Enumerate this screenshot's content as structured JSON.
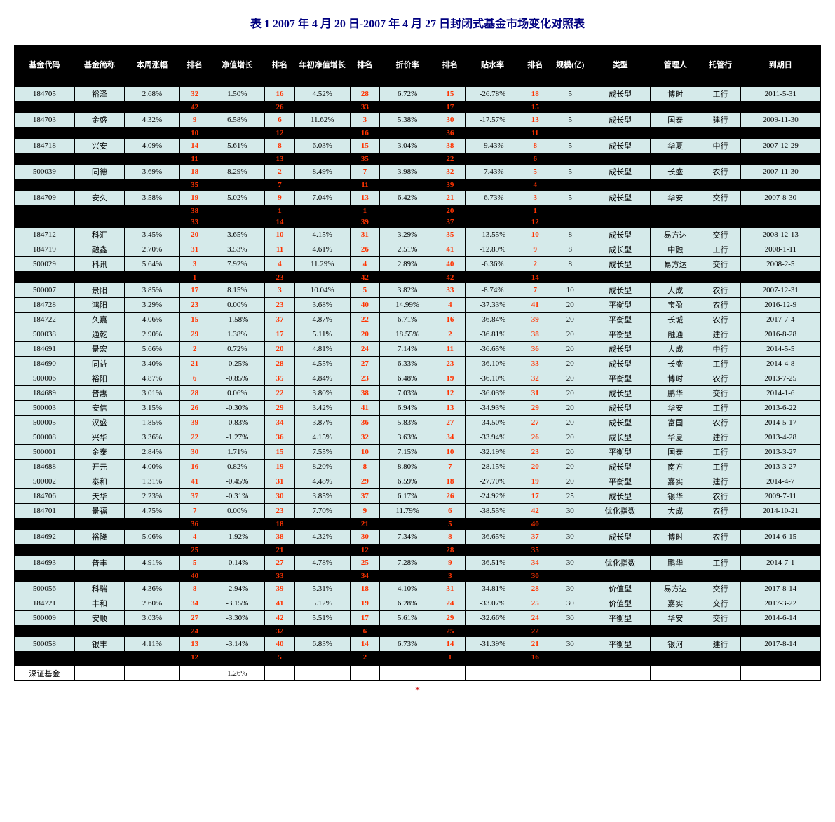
{
  "title": "表 1 2007 年 4 月 20 日-2007 年 4 月 27 日封闭式基金市场变化对照表",
  "colors": {
    "title_color": "#000080",
    "header_bg": "#000000",
    "header_fg": "#ffffff",
    "stripe_dark_bg": "#000000",
    "stripe_dark_fg": "#ffffff",
    "stripe_light_bg": "#d5eaea",
    "stripe_light_fg": "#000000",
    "rank_color": "#ff3300",
    "border_color": "#000000"
  },
  "typography": {
    "title_fontsize_pt": 16,
    "title_weight": "bold",
    "body_fontsize_pt": 11,
    "font_family": "SimSun"
  },
  "columns": [
    {
      "key": "code",
      "label": "基金代码",
      "class": "col-code"
    },
    {
      "key": "name",
      "label": "基金简称",
      "class": "col-name"
    },
    {
      "key": "p1",
      "label": "本周涨幅",
      "class": "col-pct"
    },
    {
      "key": "r1",
      "label": "排名",
      "class": "col-rank"
    },
    {
      "key": "p2",
      "label": "净值增长",
      "class": "col-pct"
    },
    {
      "key": "r2",
      "label": "排名",
      "class": "col-rank"
    },
    {
      "key": "p3",
      "label": "年初净值增长",
      "class": "col-pct"
    },
    {
      "key": "r3",
      "label": "排名",
      "class": "col-rank"
    },
    {
      "key": "p4",
      "label": "折价率",
      "class": "col-pct"
    },
    {
      "key": "r4",
      "label": "排名",
      "class": "col-rank"
    },
    {
      "key": "p5",
      "label": "贴水率",
      "class": "col-pct"
    },
    {
      "key": "r5",
      "label": "排名",
      "class": "col-rank"
    },
    {
      "key": "size",
      "label": "规模(亿)",
      "class": "col-size"
    },
    {
      "key": "type",
      "label": "类型",
      "class": "col-type"
    },
    {
      "key": "mgr",
      "label": "管理人",
      "class": "col-mgr"
    },
    {
      "key": "bank",
      "label": "托管行",
      "class": "col-bank"
    },
    {
      "key": "date",
      "label": "到期日",
      "class": "col-date"
    }
  ],
  "rows": [
    {
      "stripe": "dark",
      "cells": [
        "",
        "",
        "",
        "",
        "",
        "",
        "",
        "",
        "",
        "",
        "",
        "",
        "",
        "",
        "",
        "",
        ""
      ]
    },
    {
      "stripe": "light",
      "cells": [
        "184705",
        "裕泽",
        "2.68%",
        "32",
        "1.50%",
        "16",
        "4.52%",
        "28",
        "6.72%",
        "15",
        "-26.78%",
        "18",
        "5",
        "成长型",
        "博时",
        "工行",
        "2011-5-31"
      ]
    },
    {
      "stripe": "dark",
      "cells": [
        "",
        "",
        "",
        "42",
        "",
        "26",
        "",
        "33",
        "",
        "17",
        "",
        "15",
        "",
        "",
        "",
        "",
        ""
      ]
    },
    {
      "stripe": "light",
      "cells": [
        "184703",
        "金盛",
        "4.32%",
        "9",
        "6.58%",
        "6",
        "11.62%",
        "3",
        "5.38%",
        "30",
        "-17.57%",
        "13",
        "5",
        "成长型",
        "国泰",
        "建行",
        "2009-11-30"
      ]
    },
    {
      "stripe": "dark",
      "cells": [
        "",
        "",
        "",
        "10",
        "",
        "12",
        "",
        "16",
        "",
        "36",
        "",
        "11",
        "",
        "",
        "",
        "",
        ""
      ]
    },
    {
      "stripe": "light",
      "cells": [
        "184718",
        "兴安",
        "4.09%",
        "14",
        "5.61%",
        "8",
        "6.03%",
        "15",
        "3.04%",
        "38",
        "-9.43%",
        "8",
        "5",
        "成长型",
        "华夏",
        "中行",
        "2007-12-29"
      ]
    },
    {
      "stripe": "dark",
      "cells": [
        "",
        "",
        "",
        "11",
        "",
        "13",
        "",
        "35",
        "",
        "22",
        "",
        "6",
        "",
        "",
        "",
        "",
        ""
      ]
    },
    {
      "stripe": "light",
      "cells": [
        "500039",
        "同德",
        "3.69%",
        "18",
        "8.29%",
        "2",
        "8.49%",
        "7",
        "3.98%",
        "32",
        "-7.43%",
        "5",
        "5",
        "成长型",
        "长盛",
        "农行",
        "2007-11-30"
      ]
    },
    {
      "stripe": "dark",
      "cells": [
        "",
        "",
        "",
        "35",
        "",
        "7",
        "",
        "11",
        "",
        "39",
        "",
        "4",
        "",
        "",
        "",
        "",
        ""
      ]
    },
    {
      "stripe": "light",
      "cells": [
        "184709",
        "安久",
        "3.58%",
        "19",
        "5.02%",
        "9",
        "7.04%",
        "13",
        "6.42%",
        "21",
        "-6.73%",
        "3",
        "5",
        "成长型",
        "华安",
        "交行",
        "2007-8-30"
      ]
    },
    {
      "stripe": "dark",
      "cells": [
        "",
        "",
        "",
        "38",
        "",
        "1",
        "",
        "1",
        "",
        "20",
        "",
        "1",
        "",
        "",
        "",
        "",
        ""
      ]
    },
    {
      "stripe": "dark",
      "cells": [
        "",
        "",
        "",
        "33",
        "",
        "14",
        "",
        "39",
        "",
        "37",
        "",
        "12",
        "",
        "",
        "",
        "",
        ""
      ]
    },
    {
      "stripe": "light",
      "cells": [
        "184712",
        "科汇",
        "3.45%",
        "20",
        "3.65%",
        "10",
        "4.15%",
        "31",
        "3.29%",
        "35",
        "-13.55%",
        "10",
        "8",
        "成长型",
        "易方达",
        "交行",
        "2008-12-13"
      ]
    },
    {
      "stripe": "light",
      "cells": [
        "184719",
        "融鑫",
        "2.70%",
        "31",
        "3.53%",
        "11",
        "4.61%",
        "26",
        "2.51%",
        "41",
        "-12.89%",
        "9",
        "8",
        "成长型",
        "中融",
        "工行",
        "2008-1-11"
      ]
    },
    {
      "stripe": "light",
      "cells": [
        "500029",
        "科讯",
        "5.64%",
        "3",
        "7.92%",
        "4",
        "11.29%",
        "4",
        "2.89%",
        "40",
        "-6.36%",
        "2",
        "8",
        "成长型",
        "易方达",
        "交行",
        "2008-2-5"
      ]
    },
    {
      "stripe": "dark",
      "cells": [
        "",
        "",
        "",
        "1",
        "",
        "23",
        "",
        "42",
        "",
        "42",
        "",
        "14",
        "",
        "",
        "",
        "",
        ""
      ]
    },
    {
      "stripe": "light",
      "cells": [
        "500007",
        "景阳",
        "3.85%",
        "17",
        "8.15%",
        "3",
        "10.04%",
        "5",
        "3.82%",
        "33",
        "-8.74%",
        "7",
        "10",
        "成长型",
        "大成",
        "农行",
        "2007-12-31"
      ]
    },
    {
      "stripe": "light",
      "cells": [
        "184728",
        "鸿阳",
        "3.29%",
        "23",
        "0.00%",
        "23",
        "3.68%",
        "40",
        "14.99%",
        "4",
        "-37.33%",
        "41",
        "20",
        "平衡型",
        "宝盈",
        "农行",
        "2016-12-9"
      ]
    },
    {
      "stripe": "light",
      "cells": [
        "184722",
        "久嘉",
        "4.06%",
        "15",
        "-1.58%",
        "37",
        "4.87%",
        "22",
        "6.71%",
        "16",
        "-36.84%",
        "39",
        "20",
        "平衡型",
        "长城",
        "农行",
        "2017-7-4"
      ]
    },
    {
      "stripe": "light",
      "cells": [
        "500038",
        "通乾",
        "2.90%",
        "29",
        "1.38%",
        "17",
        "5.11%",
        "20",
        "18.55%",
        "2",
        "-36.81%",
        "38",
        "20",
        "平衡型",
        "融通",
        "建行",
        "2016-8-28"
      ]
    },
    {
      "stripe": "light",
      "cells": [
        "184691",
        "景宏",
        "5.66%",
        "2",
        "0.72%",
        "20",
        "4.81%",
        "24",
        "7.14%",
        "11",
        "-36.65%",
        "36",
        "20",
        "成长型",
        "大成",
        "中行",
        "2014-5-5"
      ]
    },
    {
      "stripe": "light",
      "cells": [
        "184690",
        "同益",
        "3.40%",
        "21",
        "-0.25%",
        "28",
        "4.55%",
        "27",
        "6.33%",
        "23",
        "-36.10%",
        "33",
        "20",
        "成长型",
        "长盛",
        "工行",
        "2014-4-8"
      ]
    },
    {
      "stripe": "light",
      "cells": [
        "500006",
        "裕阳",
        "4.87%",
        "6",
        "-0.85%",
        "35",
        "4.84%",
        "23",
        "6.48%",
        "19",
        "-36.10%",
        "32",
        "20",
        "平衡型",
        "博时",
        "农行",
        "2013-7-25"
      ]
    },
    {
      "stripe": "light",
      "cells": [
        "184689",
        "普惠",
        "3.01%",
        "28",
        "0.06%",
        "22",
        "3.80%",
        "38",
        "7.03%",
        "12",
        "-36.03%",
        "31",
        "20",
        "成长型",
        "鹏华",
        "交行",
        "2014-1-6"
      ]
    },
    {
      "stripe": "light",
      "cells": [
        "500003",
        "安信",
        "3.15%",
        "26",
        "-0.30%",
        "29",
        "3.42%",
        "41",
        "6.94%",
        "13",
        "-34.93%",
        "29",
        "20",
        "成长型",
        "华安",
        "工行",
        "2013-6-22"
      ]
    },
    {
      "stripe": "light",
      "cells": [
        "500005",
        "汉盛",
        "1.85%",
        "39",
        "-0.83%",
        "34",
        "3.87%",
        "36",
        "5.83%",
        "27",
        "-34.50%",
        "27",
        "20",
        "成长型",
        "富国",
        "农行",
        "2014-5-17"
      ]
    },
    {
      "stripe": "light",
      "cells": [
        "500008",
        "兴华",
        "3.36%",
        "22",
        "-1.27%",
        "36",
        "4.15%",
        "32",
        "3.63%",
        "34",
        "-33.94%",
        "26",
        "20",
        "成长型",
        "华夏",
        "建行",
        "2013-4-28"
      ]
    },
    {
      "stripe": "light",
      "cells": [
        "500001",
        "金泰",
        "2.84%",
        "30",
        "1.71%",
        "15",
        "7.55%",
        "10",
        "7.15%",
        "10",
        "-32.19%",
        "23",
        "20",
        "平衡型",
        "国泰",
        "工行",
        "2013-3-27"
      ]
    },
    {
      "stripe": "light",
      "cells": [
        "184688",
        "开元",
        "4.00%",
        "16",
        "0.82%",
        "19",
        "8.20%",
        "8",
        "8.80%",
        "7",
        "-28.15%",
        "20",
        "20",
        "成长型",
        "南方",
        "工行",
        "2013-3-27"
      ]
    },
    {
      "stripe": "light",
      "cells": [
        "500002",
        "泰和",
        "1.31%",
        "41",
        "-0.45%",
        "31",
        "4.48%",
        "29",
        "6.59%",
        "18",
        "-27.70%",
        "19",
        "20",
        "平衡型",
        "嘉实",
        "建行",
        "2014-4-7"
      ]
    },
    {
      "stripe": "light",
      "cells": [
        "184706",
        "天华",
        "2.23%",
        "37",
        "-0.31%",
        "30",
        "3.85%",
        "37",
        "6.17%",
        "26",
        "-24.92%",
        "17",
        "25",
        "成长型",
        "银华",
        "农行",
        "2009-7-11"
      ]
    },
    {
      "stripe": "light",
      "cells": [
        "184701",
        "景福",
        "4.75%",
        "7",
        "0.00%",
        "23",
        "7.70%",
        "9",
        "11.79%",
        "6",
        "-38.55%",
        "42",
        "30",
        "优化指数",
        "大成",
        "农行",
        "2014-10-21"
      ]
    },
    {
      "stripe": "dark",
      "cells": [
        "",
        "",
        "",
        "36",
        "",
        "18",
        "",
        "21",
        "",
        "5",
        "",
        "40",
        "",
        "",
        "",
        "",
        ""
      ]
    },
    {
      "stripe": "light",
      "cells": [
        "184692",
        "裕隆",
        "5.06%",
        "4",
        "-1.92%",
        "38",
        "4.32%",
        "30",
        "7.34%",
        "8",
        "-36.65%",
        "37",
        "30",
        "成长型",
        "博时",
        "农行",
        "2014-6-15"
      ]
    },
    {
      "stripe": "dark",
      "cells": [
        "",
        "",
        "",
        "25",
        "",
        "21",
        "",
        "12",
        "",
        "28",
        "",
        "35",
        "",
        "",
        "",
        "",
        ""
      ]
    },
    {
      "stripe": "light",
      "cells": [
        "184693",
        "普丰",
        "4.91%",
        "5",
        "-0.14%",
        "27",
        "4.78%",
        "25",
        "7.28%",
        "9",
        "-36.51%",
        "34",
        "30",
        "优化指数",
        "鹏华",
        "工行",
        "2014-7-1"
      ]
    },
    {
      "stripe": "dark",
      "cells": [
        "",
        "",
        "",
        "40",
        "",
        "33",
        "",
        "34",
        "",
        "3",
        "",
        "30",
        "",
        "",
        "",
        "",
        ""
      ]
    },
    {
      "stripe": "light",
      "cells": [
        "500056",
        "科瑞",
        "4.36%",
        "8",
        "-2.94%",
        "39",
        "5.31%",
        "18",
        "4.10%",
        "31",
        "-34.81%",
        "28",
        "30",
        "价值型",
        "易方达",
        "交行",
        "2017-8-14"
      ]
    },
    {
      "stripe": "light",
      "cells": [
        "184721",
        "丰和",
        "2.60%",
        "34",
        "-3.15%",
        "41",
        "5.12%",
        "19",
        "6.28%",
        "24",
        "-33.07%",
        "25",
        "30",
        "价值型",
        "嘉实",
        "交行",
        "2017-3-22"
      ]
    },
    {
      "stripe": "light",
      "cells": [
        "500009",
        "安顺",
        "3.03%",
        "27",
        "-3.30%",
        "42",
        "5.51%",
        "17",
        "5.61%",
        "29",
        "-32.66%",
        "24",
        "30",
        "平衡型",
        "华安",
        "交行",
        "2014-6-14"
      ]
    },
    {
      "stripe": "dark",
      "cells": [
        "",
        "",
        "",
        "24",
        "",
        "32",
        "",
        "6",
        "",
        "25",
        "",
        "22",
        "",
        "",
        "",
        "",
        ""
      ]
    },
    {
      "stripe": "light",
      "cells": [
        "500058",
        "银丰",
        "4.11%",
        "13",
        "-3.14%",
        "40",
        "6.83%",
        "14",
        "6.73%",
        "14",
        "-31.39%",
        "21",
        "30",
        "平衡型",
        "银河",
        "建行",
        "2017-8-14"
      ]
    },
    {
      "stripe": "dark",
      "cells": [
        "",
        "",
        "",
        "12",
        "",
        "5",
        "",
        "2",
        "",
        "1",
        "",
        "16",
        "",
        "",
        "",
        "",
        ""
      ]
    },
    {
      "stripe": "dark",
      "cells": [
        "",
        "",
        "",
        "",
        "",
        "",
        "",
        "",
        "",
        "",
        "",
        "",
        "",
        "",
        "",
        "",
        ""
      ]
    }
  ],
  "footer_rows": [
    {
      "cells": [
        "深证基金",
        "",
        "",
        "",
        "1.26%",
        "",
        "",
        "",
        "",
        "",
        "",
        "",
        "",
        "",
        "",
        "",
        ""
      ]
    }
  ],
  "rank_column_indices": [
    3,
    5,
    7,
    9,
    11
  ],
  "footnote_symbol": "*"
}
